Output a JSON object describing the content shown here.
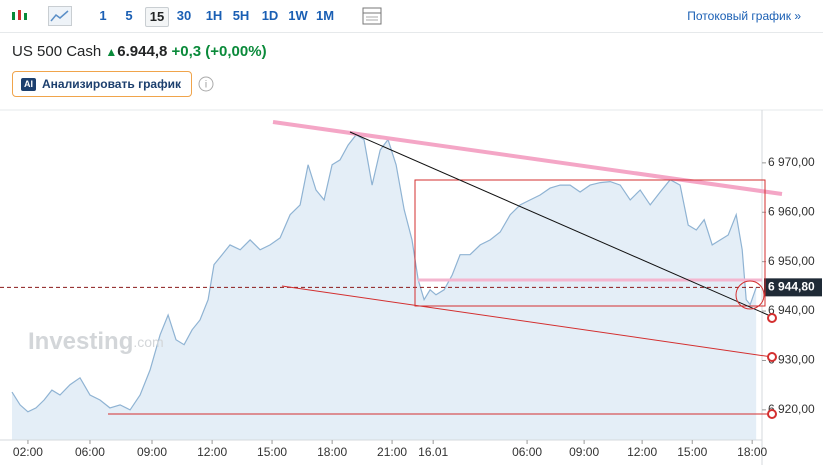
{
  "toolbar": {
    "intervals": [
      "1",
      "5",
      "15",
      "30",
      "1H",
      "5H",
      "1D",
      "1W",
      "1M"
    ],
    "selected": "15",
    "stream_link": "Потоковый график »"
  },
  "header": {
    "instrument": "US 500 Cash",
    "price": "6.944,8",
    "change": "+0,3",
    "change_pct": "(+0,00%)"
  },
  "ai_button": {
    "badge": "AI",
    "label": "Анализировать график"
  },
  "watermark": {
    "brand": "Investing",
    "suffix": ".com"
  },
  "chart_data": {
    "type": "area",
    "line_color": "#8fb3d3",
    "fill_color": "#e4eef7",
    "x": [
      0,
      0.42,
      0.83,
      1.25,
      1.67,
      2.08,
      2.5,
      3.02,
      3.54,
      4.06,
      4.58,
      5.1,
      5.63,
      6.15,
      6.67,
      7.19,
      7.71,
      8.13,
      8.54,
      8.96,
      9.38,
      9.79,
      10.21,
      10.52,
      10.94,
      11.35,
      11.88,
      12.4,
      12.92,
      13.44,
      13.96,
      14.48,
      15,
      15.42,
      15.83,
      16.25,
      16.67,
      17.08,
      17.5,
      17.92,
      18.33,
      18.75,
      19.17,
      19.58,
      20,
      20.42,
      20.83,
      21.15,
      21.46,
      21.77,
      22.08,
      22.5,
      22.92,
      23.33,
      23.85,
      24.38,
      24.9,
      25.42,
      25.94,
      26.46,
      26.98,
      27.5,
      28.02,
      28.54,
      29.06,
      29.58,
      30.1,
      30.63,
      31.15,
      31.67,
      32.19,
      32.71,
      33.23,
      33.75,
      34.27,
      34.79,
      35.21,
      35.63,
      36.04,
      36.46,
      36.88,
      37.29,
      37.71,
      38.02,
      38.23,
      38.44,
      38.75
    ],
    "values": [
      6923.6,
      6921.0,
      6919.6,
      6920.4,
      6922.0,
      6924.0,
      6923.0,
      6925.1,
      6926.5,
      6923.0,
      6922.0,
      6920.4,
      6921.0,
      6920.0,
      6923.0,
      6928.1,
      6935.2,
      6939.2,
      6934.2,
      6933.2,
      6936.2,
      6938.2,
      6942.3,
      6949.4,
      6951.4,
      6953.4,
      6952.4,
      6954.4,
      6952.4,
      6953.4,
      6954.8,
      6959.5,
      6961.5,
      6969.6,
      6964.5,
      6962.5,
      6969.6,
      6970.6,
      6973.6,
      6975.7,
      6974.7,
      6965.5,
      6972.6,
      6974.7,
      6969.6,
      6960.5,
      6954.4,
      6946.3,
      6942.3,
      6944.3,
      6943.3,
      6944.3,
      6947.3,
      6951.4,
      6951.4,
      6953.4,
      6954.4,
      6956.0,
      6959.5,
      6961.5,
      6962.5,
      6963.5,
      6964.9,
      6965.5,
      6965.5,
      6964.1,
      6965.5,
      6966.0,
      6966.2,
      6965.5,
      6962.5,
      6964.5,
      6961.5,
      6964.1,
      6966.6,
      6965.5,
      6957.4,
      6956.4,
      6958.5,
      6953.4,
      6954.4,
      6955.4,
      6959.5,
      6952.4,
      6942.3,
      6941.3,
      6944.8
    ],
    "xlim": [
      0,
      39
    ],
    "xticks": [
      {
        "value": 0.83,
        "label": "02:00"
      },
      {
        "value": 4.06,
        "label": "06:00"
      },
      {
        "value": 7.29,
        "label": "09:00"
      },
      {
        "value": 10.42,
        "label": "12:00"
      },
      {
        "value": 13.54,
        "label": "15:00"
      },
      {
        "value": 16.67,
        "label": "18:00"
      },
      {
        "value": 19.79,
        "label": "21:00"
      },
      {
        "value": 21.93,
        "label": "16.01"
      },
      {
        "value": 26.82,
        "label": "06:00"
      },
      {
        "value": 29.79,
        "label": "09:00"
      },
      {
        "value": 32.81,
        "label": "12:00"
      },
      {
        "value": 35.42,
        "label": "15:00"
      },
      {
        "value": 38.54,
        "label": "18:00"
      }
    ],
    "ylim": [
      6913.9,
      6980.7
    ],
    "yticks": [
      {
        "value": 6920,
        "label": "6 920,00"
      },
      {
        "value": 6930,
        "label": "6 930,00"
      },
      {
        "value": 6940,
        "label": "6 940,00"
      },
      {
        "value": 6950,
        "label": "6 950,00"
      },
      {
        "value": 6960,
        "label": "6 960,00"
      },
      {
        "value": 6970,
        "label": "6 970,00"
      }
    ],
    "last_price": 6944.8,
    "last_price_label": "6 944,80"
  }
}
